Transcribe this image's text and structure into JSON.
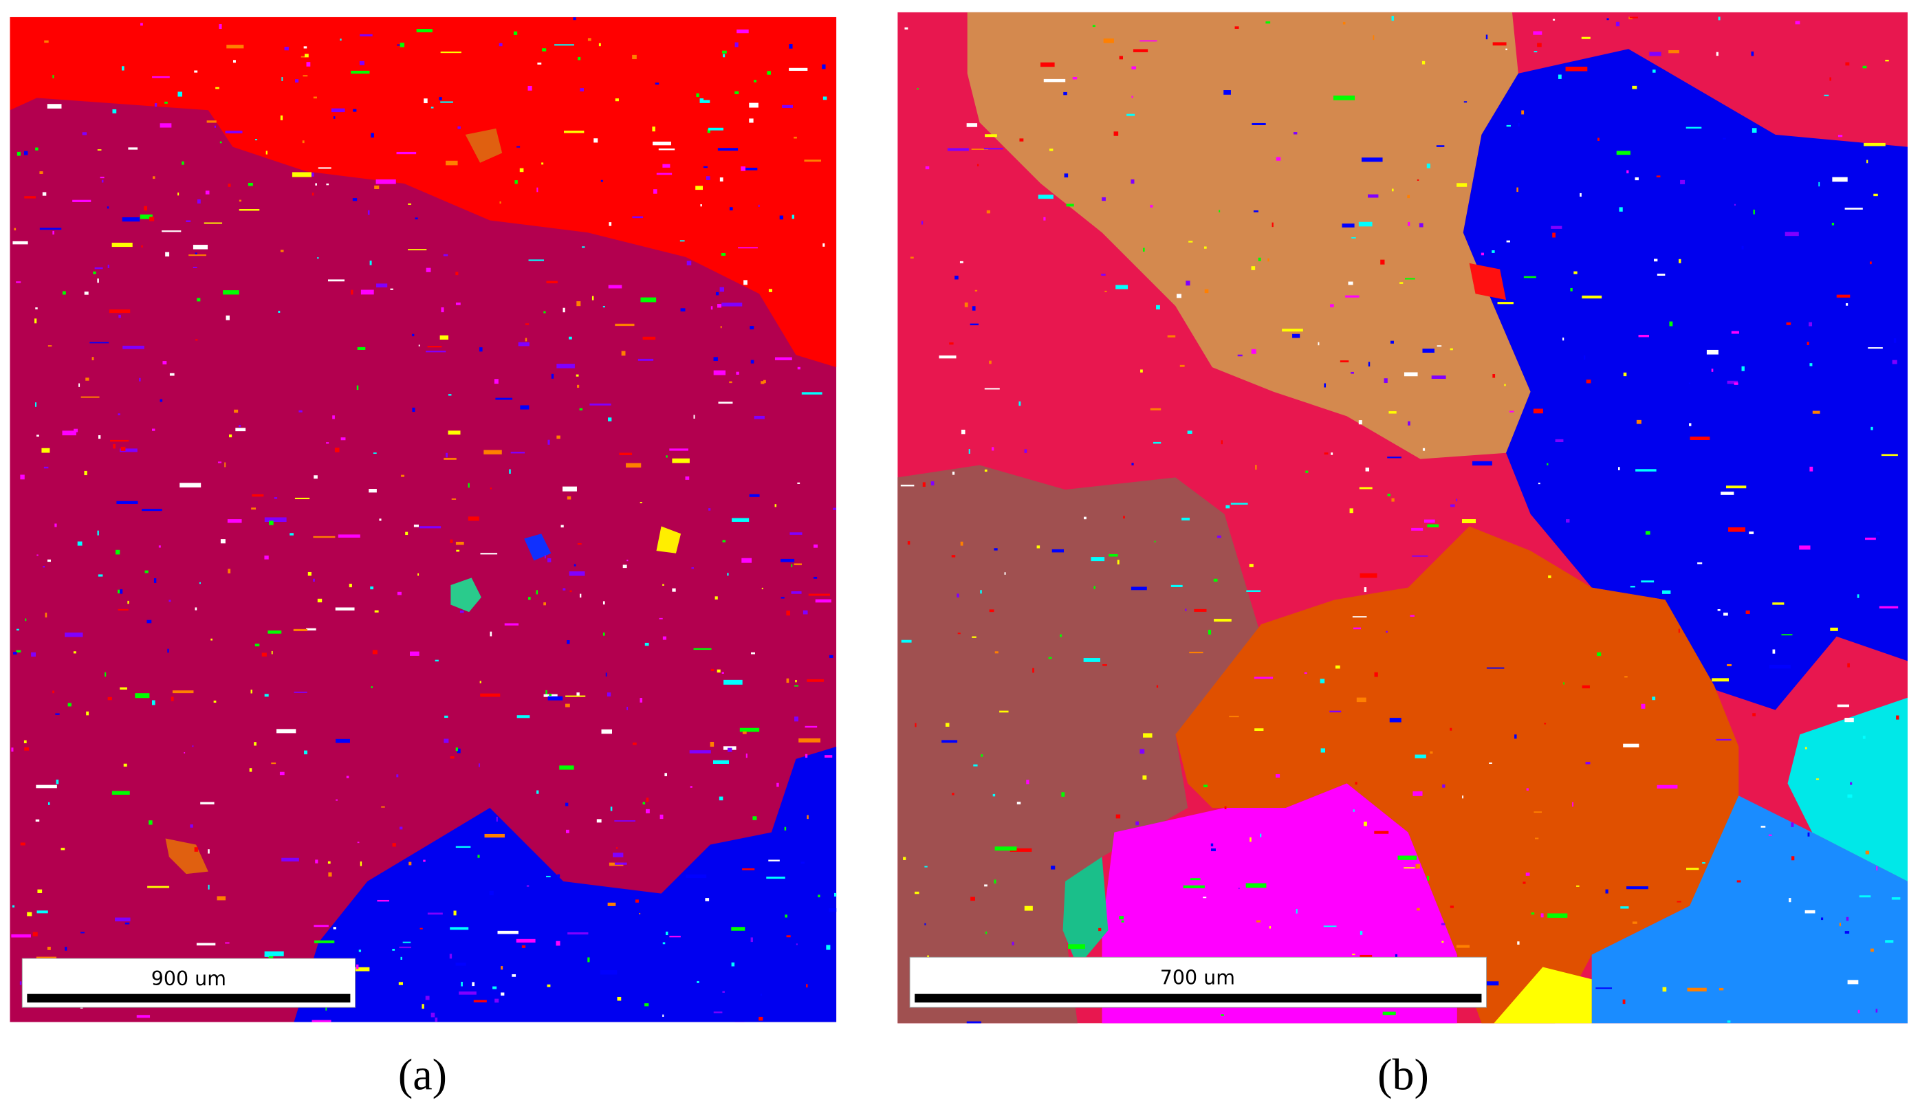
{
  "panels": [
    {
      "label": "(a)",
      "scale_bar": "900 um"
    },
    {
      "label": "(b)",
      "scale_bar": "700 um"
    }
  ]
}
